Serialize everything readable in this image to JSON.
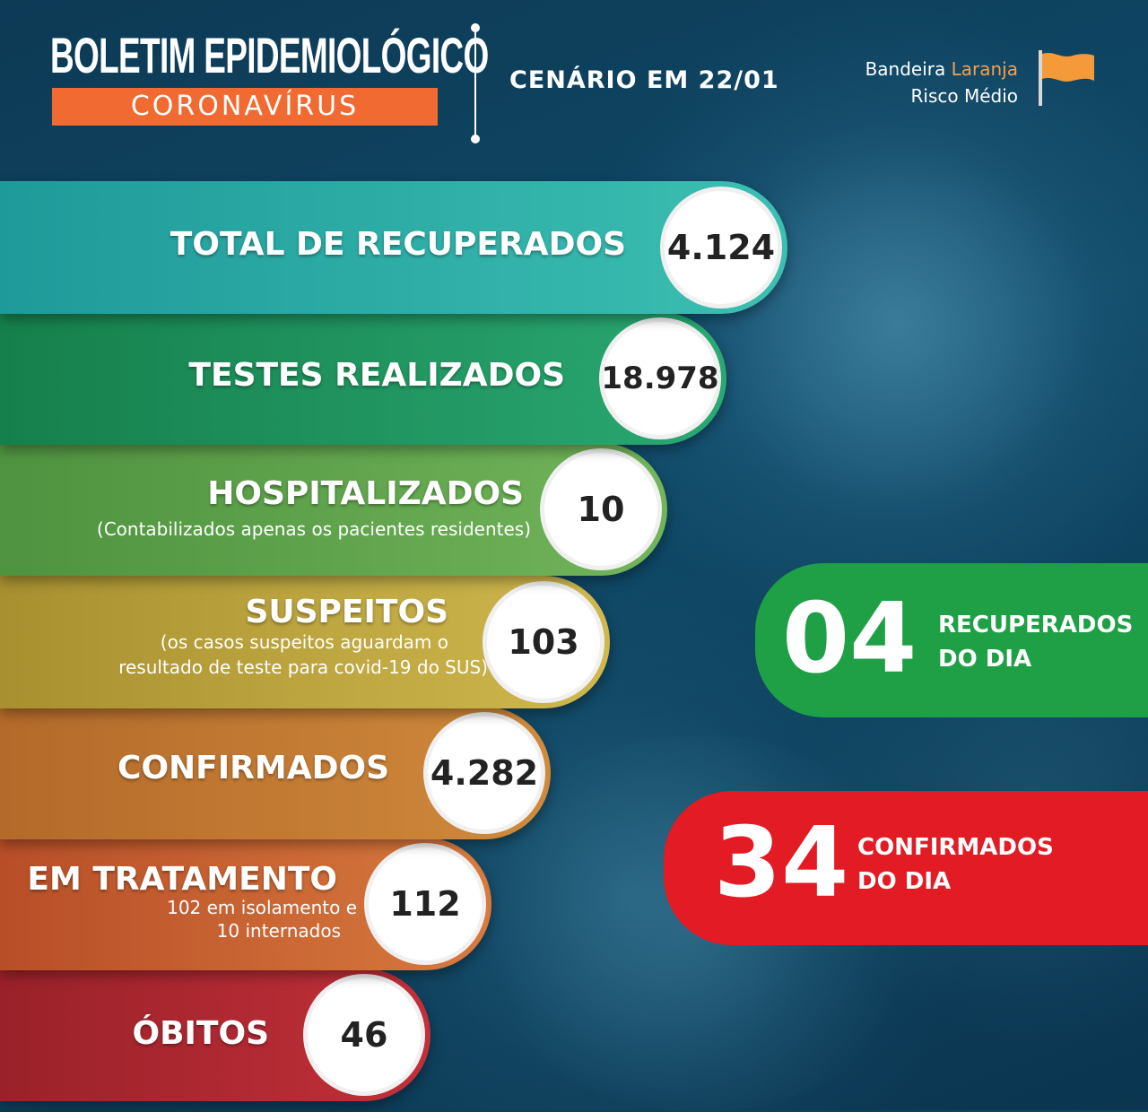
{
  "header": {
    "title": "BOLETIM EPIDEMIOLÓGICO",
    "subtitle": "CORONAVÍRUS",
    "scenario": "CENÁRIO EM 22/01",
    "flag_word": "Bandeira",
    "flag_color_word": "Laranja",
    "risk": "Risco Médio",
    "flag_icon": "orange-flag-icon",
    "accent_orange": "#f06a32"
  },
  "stats": {
    "recovered": {
      "label": "TOTAL DE RECUPERADOS",
      "value": "4.124",
      "color": "#2aa3a0"
    },
    "tests": {
      "label": "TESTES REALIZADOS",
      "value": "18.978",
      "color": "#1f8d55"
    },
    "hospitalized": {
      "label": "HOSPITALIZADOS",
      "note": "(Contabilizados apenas os pacientes residentes)",
      "value": "10",
      "color": "#5ea14a"
    },
    "suspects": {
      "label": "SUSPEITOS",
      "note_line1": "(os casos suspeitos aguardam o",
      "note_line2": "resultado de teste para covid-19 do SUS)",
      "value": "103",
      "color": "#bfa43c"
    },
    "confirmed": {
      "label": "CONFIRMADOS",
      "value": "4.282",
      "color": "#c07a32"
    },
    "treatment": {
      "label": "EM TRATAMENTO",
      "note_line1": "102 em isolamento e",
      "note_line2": "10 internados",
      "value": "112",
      "color": "#c65c2e"
    },
    "deaths": {
      "label": "ÓBITOS",
      "value": "46",
      "color": "#b3282f"
    }
  },
  "daily": {
    "recovered": {
      "value": "04",
      "line1": "RECUPERADOS",
      "line2": "DO DIA",
      "color": "#1fa046"
    },
    "confirmed": {
      "value": "34",
      "line1": "CONFIRMADOS",
      "line2": "DO DIA",
      "color": "#e21b24"
    }
  }
}
